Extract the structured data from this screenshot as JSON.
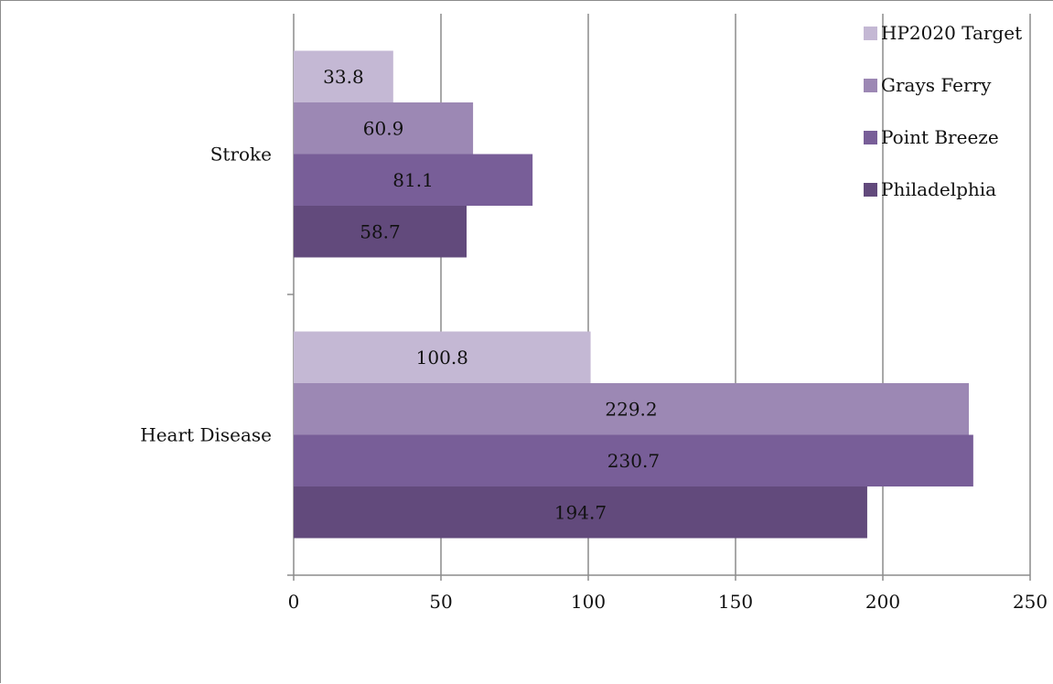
{
  "chart_data": {
    "type": "bar",
    "orientation": "horizontal",
    "categories": [
      "Stroke",
      "Heart Disease"
    ],
    "series": [
      {
        "name": "HP2020 Target",
        "color": "#c4b8d4",
        "values": [
          33.8,
          100.8
        ],
        "labels": [
          "33.8",
          "100.8"
        ]
      },
      {
        "name": "Grays Ferry",
        "color": "#9c88b4",
        "values": [
          60.9,
          229.2
        ],
        "labels": [
          "60.9",
          "229.2"
        ]
      },
      {
        "name": "Point Breeze",
        "color": "#785e98",
        "values": [
          81.1,
          230.7
        ],
        "labels": [
          "81.1",
          "230.7"
        ]
      },
      {
        "name": "Philadelphia",
        "color": "#624a7c",
        "values": [
          58.7,
          194.7
        ],
        "labels": [
          "58.7",
          "194.7"
        ]
      }
    ],
    "xlim": [
      0,
      250
    ],
    "xticks": [
      "0",
      "50",
      "100",
      "150",
      "200",
      "250"
    ],
    "grid": true,
    "legend_position": "top-right",
    "title": "",
    "xlabel": "",
    "ylabel": ""
  }
}
